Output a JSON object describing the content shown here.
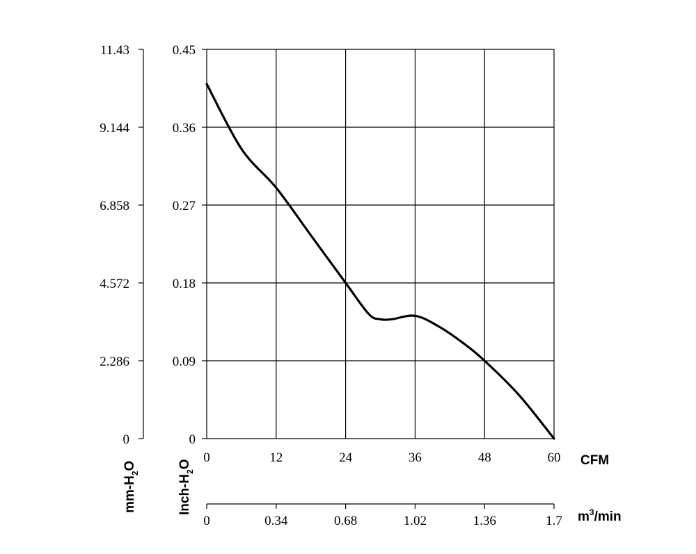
{
  "chart_data": {
    "type": "line",
    "series": [
      {
        "x": [
          0,
          6,
          12,
          18,
          24,
          28,
          30,
          32,
          36,
          40,
          44,
          48,
          54,
          60
        ],
        "y": [
          0.41,
          0.335,
          0.29,
          0.235,
          0.18,
          0.144,
          0.138,
          0.138,
          0.142,
          0.13,
          0.112,
          0.09,
          0.05,
          0.0
        ]
      }
    ],
    "x_axes": {
      "cfm": {
        "label": "CFM",
        "range": [
          0,
          60
        ],
        "ticks": [
          "0",
          "12",
          "24",
          "36",
          "48",
          "60"
        ]
      },
      "m3min": {
        "label_base": "m",
        "label_sup": "3",
        "label_tail": "/min",
        "range": [
          0,
          1.7
        ],
        "ticks": [
          "0",
          "0.34",
          "0.68",
          "1.02",
          "1.36",
          "1.7"
        ]
      }
    },
    "y_axes": {
      "inch": {
        "label_main": "Inch-H",
        "label_sub": "2",
        "label_tail": "O",
        "range": [
          0,
          0.45
        ],
        "ticks": [
          "0",
          "0.09",
          "0.18",
          "0.27",
          "0.36",
          "0.45"
        ]
      },
      "mm": {
        "label_main": "mm-H",
        "label_sub": "2",
        "label_tail": "O",
        "range": [
          0,
          11.43
        ],
        "ticks": [
          "0",
          "2.286",
          "4.572",
          "6.858",
          "9.144",
          "11.43"
        ]
      }
    },
    "grid": true
  }
}
